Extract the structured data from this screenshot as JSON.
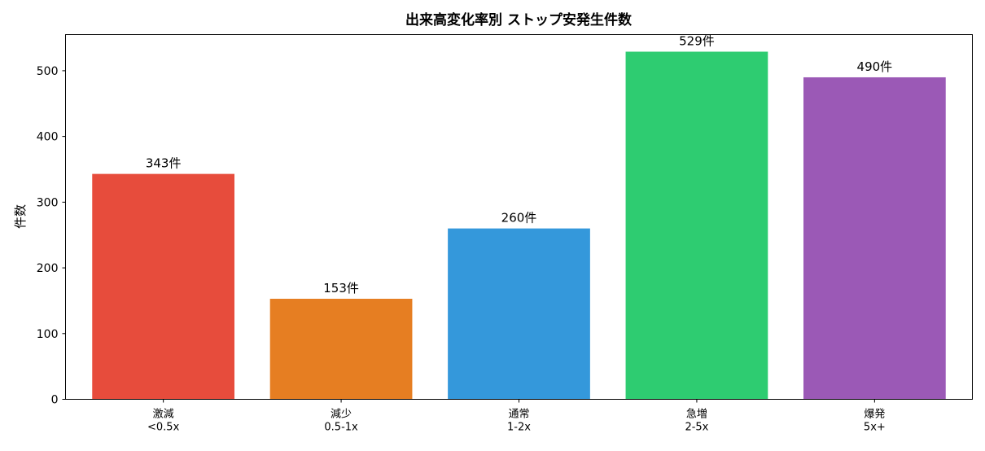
{
  "chart_data": {
    "type": "bar",
    "title": "出来高変化率別 ストップ安発生件数",
    "xlabel": "",
    "ylabel": "件数",
    "ylim": [
      0,
      555
    ],
    "yticks": [
      "0",
      "100",
      "200",
      "300",
      "400",
      "500"
    ],
    "categories": [
      [
        "激減",
        "<0.5x"
      ],
      [
        "減少",
        "0.5-1x"
      ],
      [
        "通常",
        "1-2x"
      ],
      [
        "急増",
        "2-5x"
      ],
      [
        "爆発",
        "5x+"
      ]
    ],
    "values": [
      343,
      153,
      260,
      529,
      490
    ],
    "value_labels": [
      "343件",
      "153件",
      "260件",
      "529件",
      "490件"
    ],
    "colors": [
      "#e74c3c",
      "#e67e22",
      "#3498db",
      "#2ecc71",
      "#9b59b6"
    ],
    "grid": false,
    "legend": "none"
  }
}
